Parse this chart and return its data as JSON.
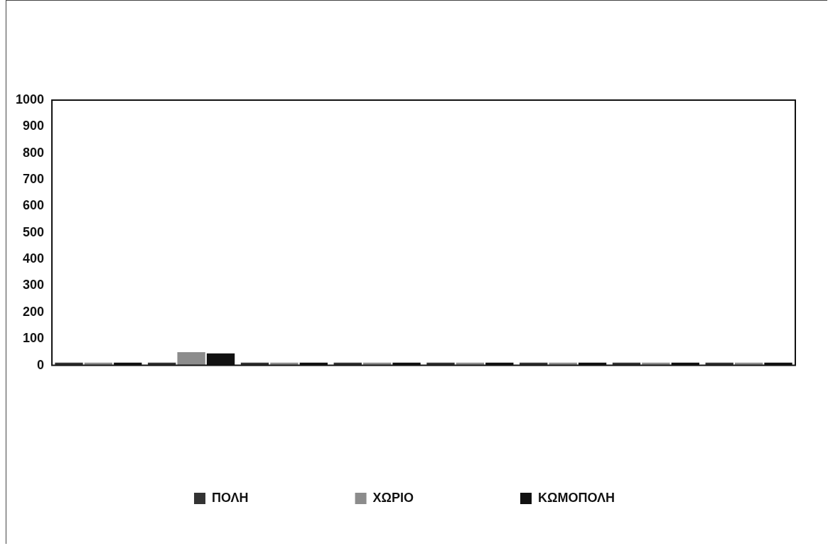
{
  "chart_data": {
    "type": "bar",
    "categories": [
      null,
      null,
      null,
      null,
      null,
      null,
      null,
      null
    ],
    "series": [
      {
        "name": "ΠΟΛΗ",
        "color": "#333333",
        "values": [
          10,
          10,
          10,
          10,
          10,
          10,
          10,
          10
        ]
      },
      {
        "name": "ΧΩΡΙΟ",
        "color": "#8c8c8c",
        "values": [
          10,
          50,
          10,
          10,
          10,
          10,
          10,
          10
        ]
      },
      {
        "name": "ΚΩΜΟΠΟΛΗ",
        "color": "#111111",
        "values": [
          10,
          45,
          10,
          10,
          10,
          10,
          10,
          10
        ]
      }
    ],
    "ylim": [
      0,
      1000
    ],
    "yticks": [
      0,
      100,
      200,
      300,
      400,
      500,
      600,
      700,
      800,
      900,
      1000
    ],
    "grid": false,
    "legend": "bottom"
  }
}
